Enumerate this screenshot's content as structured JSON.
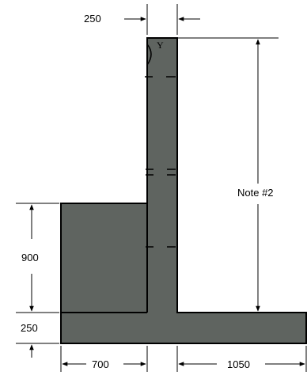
{
  "dimensions": {
    "top_width": "250",
    "stem_height": "Note #2",
    "key_height": "900",
    "footing_height": "250",
    "toe_width": "700",
    "heel_width": "1050"
  },
  "stem_top_symbol": "Y",
  "colors": {
    "concrete": "#5f6460",
    "outline": "#000000",
    "dimension": "#000000",
    "background": "#ffffff"
  }
}
